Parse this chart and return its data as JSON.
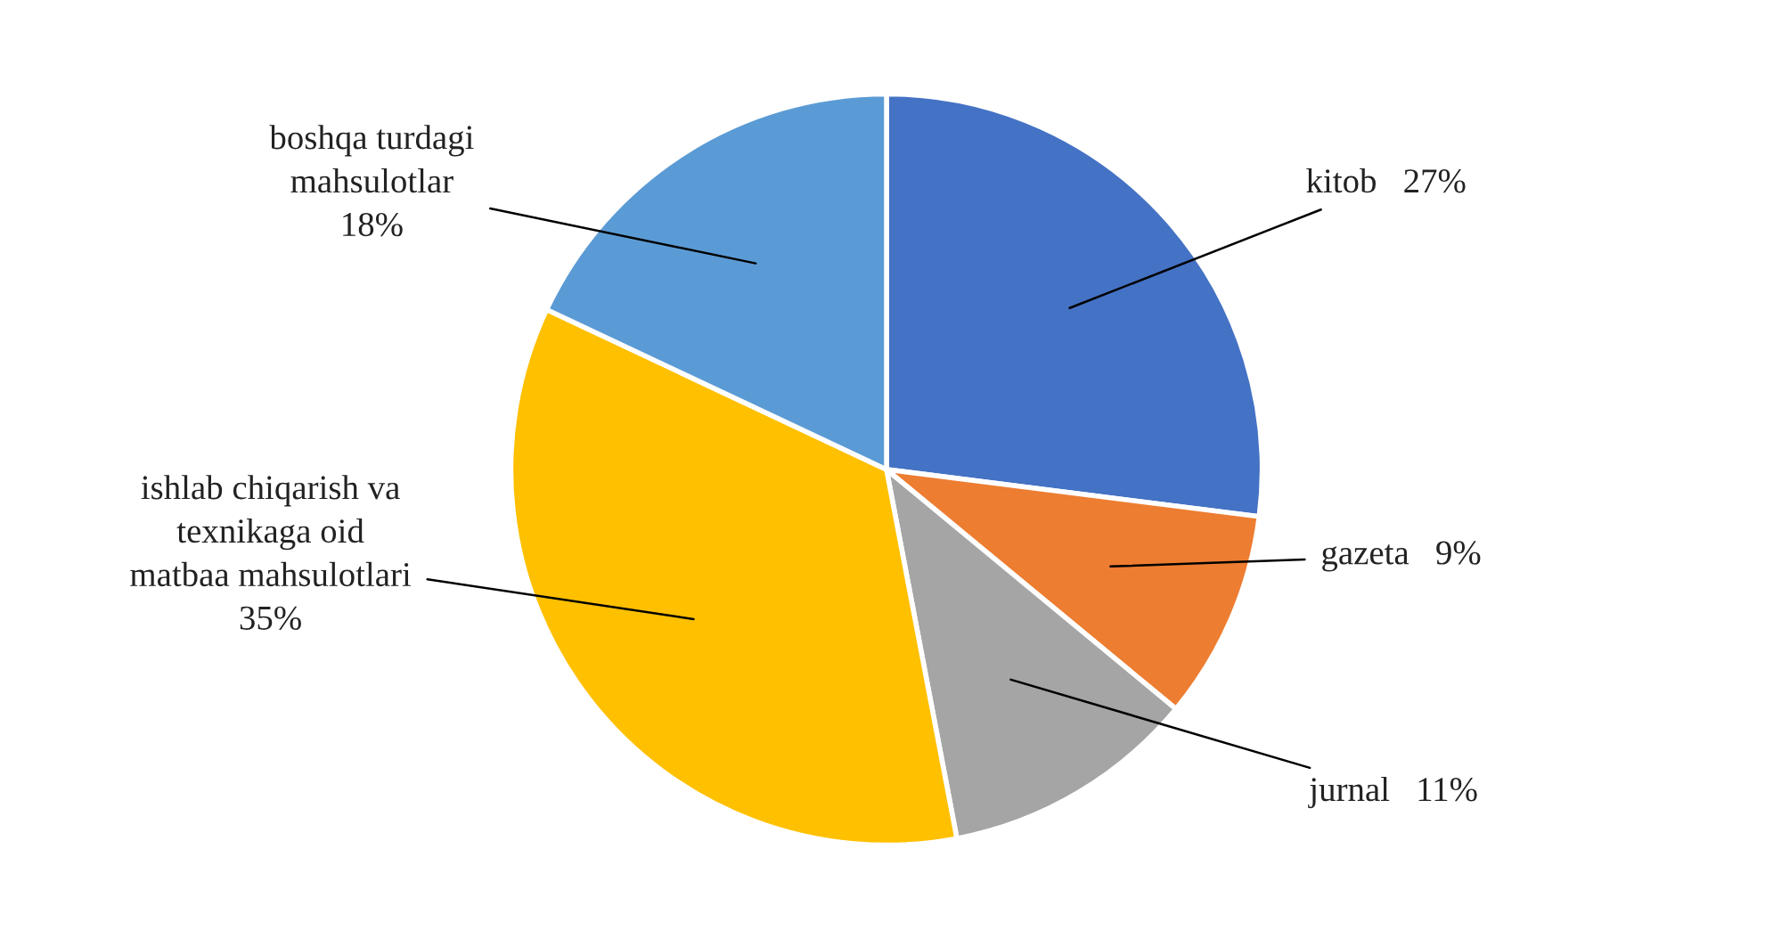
{
  "chart_data": {
    "type": "pie",
    "categories": [
      "kitob",
      "gazeta",
      "jurnal",
      "ishlab chiqarish va texnikaga oid matbaa mahsulotlari",
      "boshqa turdagi mahsulotlar"
    ],
    "values": [
      27,
      9,
      11,
      35,
      18
    ],
    "value_labels": [
      "27%",
      "9%",
      "11%",
      "35%",
      "18%"
    ],
    "colors": [
      "#4472c4",
      "#ed7d31",
      "#a5a5a5",
      "#ffc000",
      "#5b9bd5"
    ],
    "legend": false
  }
}
